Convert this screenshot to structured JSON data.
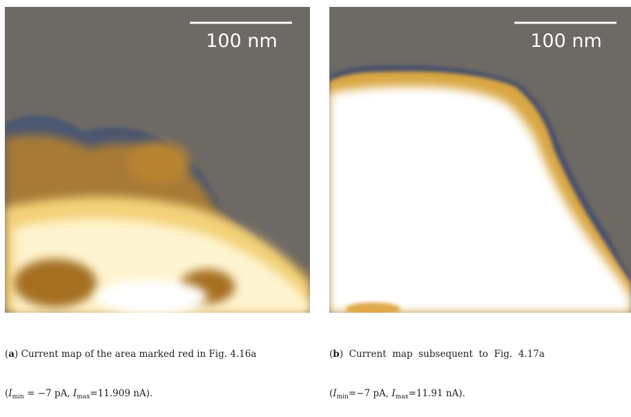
{
  "panels": [
    {
      "scale_bar": "100 nm",
      "caption": {
        "line1": [
          "(",
          "a",
          ") Current map of the area marked red in Fig. 4.16a"
        ],
        "line2": [
          "(",
          "I",
          "min",
          " = −7 pA, ",
          "I",
          "max",
          "=11.909 nA)."
        ]
      }
    },
    {
      "scale_bar": "100 nm",
      "caption": {
        "line1": [
          "(",
          "b",
          ")  Current  map  subsequent  to  Fig.  4.17a"
        ],
        "line2": [
          "(",
          "I",
          "min",
          "=−7 pA, ",
          "I",
          "max",
          "=11.91 nA)."
        ]
      }
    }
  ]
}
